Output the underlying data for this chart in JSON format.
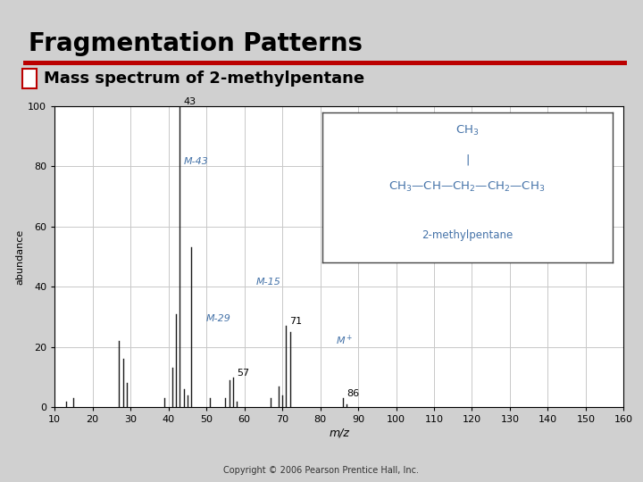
{
  "title": "Fragmentation Patterns",
  "subtitle": "Mass spectrum of 2-methylpentane",
  "bg_color": "#d0d0d0",
  "plot_bg_color": "#ffffff",
  "xlabel": "m/z",
  "ylabel": "abundance",
  "xlim": [
    10,
    160
  ],
  "ylim": [
    0,
    100
  ],
  "xticks": [
    10,
    20,
    30,
    40,
    50,
    60,
    70,
    80,
    90,
    100,
    110,
    120,
    130,
    140,
    150,
    160
  ],
  "yticks": [
    0,
    20,
    40,
    60,
    80,
    100
  ],
  "peaks": [
    {
      "mz": 13,
      "intensity": 2
    },
    {
      "mz": 15,
      "intensity": 3
    },
    {
      "mz": 27,
      "intensity": 22
    },
    {
      "mz": 28,
      "intensity": 16
    },
    {
      "mz": 29,
      "intensity": 8
    },
    {
      "mz": 39,
      "intensity": 3
    },
    {
      "mz": 41,
      "intensity": 13
    },
    {
      "mz": 42,
      "intensity": 31
    },
    {
      "mz": 43,
      "intensity": 100
    },
    {
      "mz": 44,
      "intensity": 6
    },
    {
      "mz": 45,
      "intensity": 4
    },
    {
      "mz": 46,
      "intensity": 53
    },
    {
      "mz": 51,
      "intensity": 3
    },
    {
      "mz": 55,
      "intensity": 3
    },
    {
      "mz": 56,
      "intensity": 9
    },
    {
      "mz": 57,
      "intensity": 10
    },
    {
      "mz": 58,
      "intensity": 2
    },
    {
      "mz": 67,
      "intensity": 3
    },
    {
      "mz": 69,
      "intensity": 7
    },
    {
      "mz": 70,
      "intensity": 4
    },
    {
      "mz": 71,
      "intensity": 27
    },
    {
      "mz": 72,
      "intensity": 25
    },
    {
      "mz": 86,
      "intensity": 3
    },
    {
      "mz": 87,
      "intensity": 1
    }
  ],
  "blue": "#4472a8",
  "bar_color": "#1a1a1a",
  "grid_color": "#c8c8c8",
  "red_line_color": "#bb0000",
  "title_fontsize": 20,
  "subtitle_fontsize": 13,
  "copyright": "Copyright © 2006 Pearson Prentice Hall, Inc."
}
